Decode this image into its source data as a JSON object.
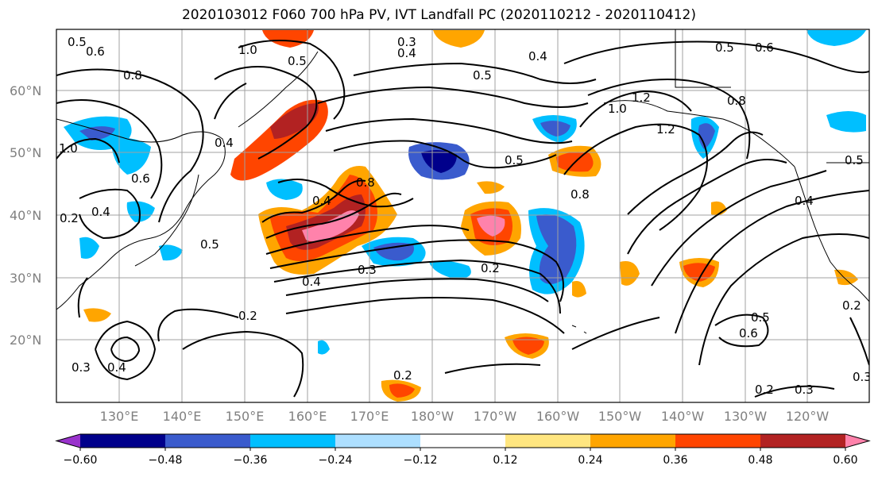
{
  "title": "2020103012 F060 700 hPa PV, IVT Landfall PC (2020110212 - 2020110412)",
  "lat_labels": [
    "60°N",
    "50°N",
    "40°N",
    "30°N",
    "20°N"
  ],
  "lon_labels": [
    "130°E",
    "140°E",
    "150°E",
    "160°E",
    "170°E",
    "180°W",
    "170°W",
    "160°W",
    "150°W",
    "140°W",
    "130°W",
    "120°W"
  ],
  "colorbar": {
    "ticks": [
      "−0.60",
      "−0.48",
      "−0.36",
      "−0.24",
      "−0.12",
      "0.12",
      "0.24",
      "0.36",
      "0.48",
      "0.60"
    ],
    "colors": [
      "#9932CC",
      "#00008B",
      "#3A5BCD",
      "#00BFFF",
      "#ADDFFF",
      "#FFFFFF",
      "#FFE680",
      "#FFA500",
      "#FF4500",
      "#B22222",
      "#FF82AB"
    ]
  },
  "contour_labels": [
    "0.5",
    "0.6",
    "1.0",
    "0.3",
    "0.4",
    "0.5",
    "0.8",
    "0.5",
    "0.4",
    "0.5",
    "0.6",
    "1.0",
    "1.2",
    "1.2",
    "0.8",
    "0.5",
    "0.8",
    "0.4",
    "0.5",
    "0.4",
    "0.3",
    "0.2",
    "0.2",
    "0.2",
    "0.4",
    "0.3",
    "0.5",
    "0.6",
    "0.2",
    "0.3",
    "0.2",
    "0.3",
    "1.0",
    "0.4",
    "0.6",
    "0.2",
    "0.4",
    "0.8",
    "0.4",
    "0.5"
  ]
}
